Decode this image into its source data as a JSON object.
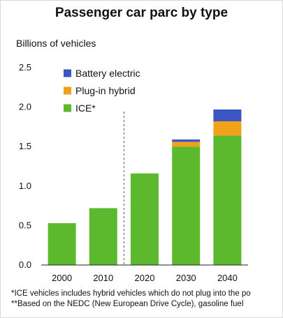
{
  "chart_data": {
    "type": "bar",
    "stacked": true,
    "title": "Passenger car parc by type",
    "ylabel": "Billions of vehicles",
    "xlabel": "",
    "categories": [
      "2000",
      "2010",
      "2020",
      "2030",
      "2040"
    ],
    "series": [
      {
        "name": "ICE*",
        "color": "#5cb82d",
        "values": [
          0.53,
          0.72,
          1.16,
          1.5,
          1.64
        ]
      },
      {
        "name": "Plug-in hybrid",
        "color": "#f2a21a",
        "values": [
          0,
          0,
          0,
          0.06,
          0.18
        ]
      },
      {
        "name": "Battery electric",
        "color": "#3d55c2",
        "values": [
          0,
          0,
          0,
          0.03,
          0.15
        ]
      }
    ],
    "yticks": [
      "0.0",
      "0.5",
      "1.0",
      "1.5",
      "2.0",
      "2.5"
    ],
    "ylim": [
      0,
      2.5
    ],
    "legend_order": [
      "Battery electric",
      "Plug-in hybrid",
      "ICE*"
    ],
    "legend_position": "top-left",
    "divider_after_category": "2010",
    "grid": false
  },
  "footnotes": {
    "line1": "*ICE vehicles includes hybrid vehicles which do not plug into the po",
    "line2": "**Based on the NEDC (New European Drive Cycle), gasoline fuel"
  }
}
